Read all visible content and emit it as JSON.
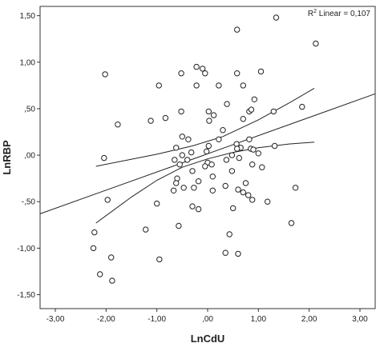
{
  "chart_data": {
    "type": "scatter",
    "title": "",
    "xlabel": "LnCdU",
    "ylabel": "LnRBP",
    "xlim": [
      -3.3,
      3.3
    ],
    "ylim": [
      -1.65,
      1.6
    ],
    "x_ticks": [
      "-3,00",
      "-2,00",
      "-1,00",
      ",00",
      "1,00",
      "2,00",
      "3,00"
    ],
    "x_tick_values": [
      -3,
      -2,
      -1,
      0,
      1,
      2,
      3
    ],
    "y_ticks": [
      "1,50",
      "1,00",
      ",50",
      ",00",
      "-,50",
      "-1,00",
      "-1,50"
    ],
    "y_tick_values": [
      1.5,
      1.0,
      0.5,
      0,
      -0.5,
      -1.0,
      -1.5
    ],
    "grid": false,
    "annotation": {
      "prefix": "R",
      "superscript": "2",
      "suffix": " Linear = 0,107",
      "placement": "top-right"
    },
    "points": [
      {
        "x": 1.35,
        "y": 1.48
      },
      {
        "x": 0.58,
        "y": 1.35
      },
      {
        "x": 2.13,
        "y": 1.2
      },
      {
        "x": -2.02,
        "y": 0.87
      },
      {
        "x": -0.52,
        "y": 0.88
      },
      {
        "x": -0.22,
        "y": 0.95
      },
      {
        "x": -0.1,
        "y": 0.93
      },
      {
        "x": -0.05,
        "y": 0.88
      },
      {
        "x": 0.58,
        "y": 0.88
      },
      {
        "x": 1.05,
        "y": 0.9
      },
      {
        "x": -0.96,
        "y": 0.75
      },
      {
        "x": -0.22,
        "y": 0.75
      },
      {
        "x": 0.22,
        "y": 0.75
      },
      {
        "x": 0.7,
        "y": 0.75
      },
      {
        "x": 0.92,
        "y": 0.6
      },
      {
        "x": 0.38,
        "y": 0.55
      },
      {
        "x": 1.86,
        "y": 0.52
      },
      {
        "x": -0.52,
        "y": 0.47
      },
      {
        "x": 0.02,
        "y": 0.47
      },
      {
        "x": 0.82,
        "y": 0.47
      },
      {
        "x": 1.3,
        "y": 0.47
      },
      {
        "x": 0.86,
        "y": 0.49
      },
      {
        "x": 0.12,
        "y": 0.43
      },
      {
        "x": -0.83,
        "y": 0.4
      },
      {
        "x": 0.7,
        "y": 0.39
      },
      {
        "x": -1.12,
        "y": 0.37
      },
      {
        "x": 0.03,
        "y": 0.37
      },
      {
        "x": -1.77,
        "y": 0.33
      },
      {
        "x": 0.3,
        "y": 0.27
      },
      {
        "x": -0.5,
        "y": 0.2
      },
      {
        "x": -0.38,
        "y": 0.17
      },
      {
        "x": 0.22,
        "y": 0.17
      },
      {
        "x": 0.82,
        "y": 0.17
      },
      {
        "x": 0.57,
        "y": 0.12
      },
      {
        "x": 0.02,
        "y": 0.1
      },
      {
        "x": 0.65,
        "y": 0.08
      },
      {
        "x": -0.62,
        "y": 0.08
      },
      {
        "x": 0.58,
        "y": 0.07
      },
      {
        "x": 0.85,
        "y": 0.07
      },
      {
        "x": 0.9,
        "y": 0.06
      },
      {
        "x": 1.32,
        "y": 0.1
      },
      {
        "x": -0.32,
        "y": 0.03
      },
      {
        "x": -0.02,
        "y": 0.04
      },
      {
        "x": -0.5,
        "y": 0.0
      },
      {
        "x": 0.48,
        "y": 0.0
      },
      {
        "x": 0.62,
        "y": -0.03
      },
      {
        "x": 1.0,
        "y": 0.02
      },
      {
        "x": -2.04,
        "y": -0.03
      },
      {
        "x": -0.65,
        "y": -0.05
      },
      {
        "x": -0.4,
        "y": -0.05
      },
      {
        "x": 0.0,
        "y": -0.08
      },
      {
        "x": 0.37,
        "y": -0.05
      },
      {
        "x": -0.55,
        "y": -0.1
      },
      {
        "x": -0.05,
        "y": -0.12
      },
      {
        "x": 0.08,
        "y": -0.1
      },
      {
        "x": -0.3,
        "y": -0.17
      },
      {
        "x": 0.88,
        "y": -0.1
      },
      {
        "x": 1.07,
        "y": -0.13
      },
      {
        "x": 0.48,
        "y": -0.17
      },
      {
        "x": 0.1,
        "y": -0.23
      },
      {
        "x": -0.6,
        "y": -0.25
      },
      {
        "x": -0.18,
        "y": -0.28
      },
      {
        "x": -0.62,
        "y": -0.3
      },
      {
        "x": 0.35,
        "y": -0.33
      },
      {
        "x": 0.75,
        "y": -0.3
      },
      {
        "x": -0.47,
        "y": -0.35
      },
      {
        "x": -0.27,
        "y": -0.35
      },
      {
        "x": 0.6,
        "y": -0.37
      },
      {
        "x": -0.67,
        "y": -0.38
      },
      {
        "x": 0.1,
        "y": -0.38
      },
      {
        "x": 0.7,
        "y": -0.4
      },
      {
        "x": 0.8,
        "y": -0.43
      },
      {
        "x": 1.73,
        "y": -0.35
      },
      {
        "x": -1.97,
        "y": -0.48
      },
      {
        "x": 0.88,
        "y": -0.48
      },
      {
        "x": 1.18,
        "y": -0.5
      },
      {
        "x": -1.0,
        "y": -0.52
      },
      {
        "x": -0.3,
        "y": -0.55
      },
      {
        "x": -0.18,
        "y": -0.58
      },
      {
        "x": 0.5,
        "y": -0.57
      },
      {
        "x": 1.65,
        "y": -0.73
      },
      {
        "x": -0.57,
        "y": -0.76
      },
      {
        "x": -2.23,
        "y": -0.83
      },
      {
        "x": -1.22,
        "y": -0.8
      },
      {
        "x": 0.43,
        "y": -0.85
      },
      {
        "x": -2.25,
        "y": -1.0
      },
      {
        "x": 0.35,
        "y": -1.05
      },
      {
        "x": 0.6,
        "y": -1.06
      },
      {
        "x": -1.9,
        "y": -1.1
      },
      {
        "x": -0.95,
        "y": -1.12
      },
      {
        "x": -2.12,
        "y": -1.28
      },
      {
        "x": -1.88,
        "y": -1.35
      }
    ],
    "series": [
      {
        "kind": "fit",
        "points": [
          [
            -3.3,
            -0.63
          ],
          [
            3.3,
            0.66
          ]
        ]
      },
      {
        "kind": "ci-upper",
        "points": [
          [
            -2.2,
            -0.12
          ],
          [
            -1.0,
            0.01
          ],
          [
            -0.3,
            0.1
          ],
          [
            0.3,
            0.2
          ],
          [
            1.0,
            0.38
          ],
          [
            1.6,
            0.56
          ],
          [
            2.1,
            0.72
          ]
        ]
      },
      {
        "kind": "ci-lower",
        "points": [
          [
            -2.2,
            -0.73
          ],
          [
            -1.5,
            -0.45
          ],
          [
            -1.0,
            -0.27
          ],
          [
            -0.5,
            -0.13
          ],
          [
            0.0,
            -0.04
          ],
          [
            0.5,
            0.03
          ],
          [
            1.0,
            0.08
          ],
          [
            1.6,
            0.12
          ],
          [
            2.1,
            0.14
          ]
        ]
      }
    ]
  }
}
